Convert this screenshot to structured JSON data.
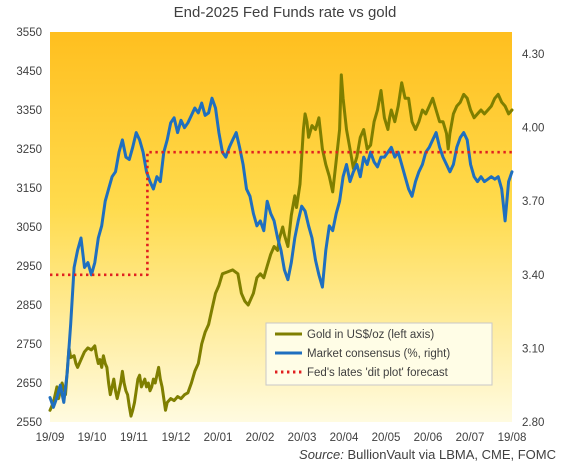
{
  "chart_data": {
    "type": "line",
    "title": "End-2025 Fed Funds rate vs gold",
    "xlabel": "",
    "ylabel": "",
    "x_ticks": [
      "19/09",
      "19/10",
      "19/11",
      "19/12",
      "20/01",
      "20/02",
      "20/03",
      "20/04",
      "20/05",
      "20/06",
      "20/07",
      "19/08"
    ],
    "y_left": {
      "ticks": [
        2550,
        2650,
        2750,
        2850,
        2950,
        3050,
        3150,
        3250,
        3350,
        3450,
        3550
      ],
      "lim": [
        2550,
        3550
      ]
    },
    "y_right": {
      "ticks": [
        "2.80",
        "3.10",
        "3.40",
        "3.70",
        "4.00",
        "4.30"
      ],
      "lim": [
        2.8,
        4.39
      ]
    },
    "grid": false,
    "legend_position": "bottom-right",
    "series": [
      {
        "name": "Gold in US$/oz (left axis)",
        "axis": "left",
        "color": "#7f7f00",
        "values": [
          [
            0,
            2580
          ],
          [
            0.2,
            2600
          ],
          [
            0.4,
            2640
          ],
          [
            0.5,
            2610
          ],
          [
            0.7,
            2650
          ],
          [
            0.9,
            2620
          ],
          [
            1.0,
            2680
          ],
          [
            1.1,
            2740
          ],
          [
            1.2,
            2715
          ],
          [
            1.4,
            2720
          ],
          [
            1.5,
            2700
          ],
          [
            1.6,
            2690
          ],
          [
            1.8,
            2710
          ],
          [
            2.0,
            2730
          ],
          [
            2.2,
            2740
          ],
          [
            2.4,
            2735
          ],
          [
            2.6,
            2745
          ],
          [
            2.7,
            2720
          ],
          [
            2.8,
            2700
          ],
          [
            2.9,
            2710
          ],
          [
            3.0,
            2690
          ],
          [
            3.1,
            2720
          ],
          [
            3.2,
            2700
          ],
          [
            3.3,
            2690
          ],
          [
            3.4,
            2650
          ],
          [
            3.5,
            2620
          ],
          [
            3.6,
            2640
          ],
          [
            3.7,
            2660
          ],
          [
            3.8,
            2630
          ],
          [
            3.9,
            2610
          ],
          [
            4.0,
            2630
          ],
          [
            4.1,
            2650
          ],
          [
            4.2,
            2680
          ],
          [
            4.3,
            2650
          ],
          [
            4.4,
            2630
          ],
          [
            4.5,
            2620
          ],
          [
            4.6,
            2590
          ],
          [
            4.7,
            2565
          ],
          [
            4.8,
            2580
          ],
          [
            4.9,
            2600
          ],
          [
            5.0,
            2630
          ],
          [
            5.1,
            2660
          ],
          [
            5.2,
            2670
          ],
          [
            5.3,
            2640
          ],
          [
            5.4,
            2650
          ],
          [
            5.5,
            2660
          ],
          [
            5.6,
            2640
          ],
          [
            5.7,
            2650
          ],
          [
            5.8,
            2630
          ],
          [
            5.9,
            2640
          ],
          [
            6.0,
            2660
          ],
          [
            6.1,
            2650
          ],
          [
            6.2,
            2670
          ],
          [
            6.3,
            2690
          ],
          [
            6.4,
            2660
          ],
          [
            6.5,
            2640
          ],
          [
            6.6,
            2610
          ],
          [
            6.7,
            2580
          ],
          [
            6.8,
            2600
          ],
          [
            7.0,
            2610
          ],
          [
            7.2,
            2605
          ],
          [
            7.4,
            2615
          ],
          [
            7.6,
            2610
          ],
          [
            7.8,
            2620
          ],
          [
            8.0,
            2625
          ],
          [
            8.2,
            2650
          ],
          [
            8.4,
            2680
          ],
          [
            8.6,
            2700
          ],
          [
            8.8,
            2750
          ],
          [
            9.0,
            2780
          ],
          [
            9.2,
            2800
          ],
          [
            9.4,
            2840
          ],
          [
            9.6,
            2880
          ],
          [
            9.8,
            2900
          ],
          [
            10.0,
            2930
          ],
          [
            10.3,
            2935
          ],
          [
            10.6,
            2940
          ],
          [
            10.9,
            2930
          ],
          [
            11.1,
            2880
          ],
          [
            11.3,
            2860
          ],
          [
            11.5,
            2850
          ],
          [
            11.8,
            2880
          ],
          [
            12.0,
            2920
          ],
          [
            12.2,
            2930
          ],
          [
            12.4,
            2920
          ],
          [
            12.6,
            2950
          ],
          [
            12.8,
            2980
          ],
          [
            13.0,
            3000
          ],
          [
            13.2,
            2990
          ],
          [
            13.3,
            3020
          ],
          [
            13.5,
            3050
          ],
          [
            13.6,
            3030
          ],
          [
            13.8,
            3000
          ],
          [
            14.0,
            3080
          ],
          [
            14.2,
            3130
          ],
          [
            14.3,
            3100
          ],
          [
            14.5,
            3160
          ],
          [
            14.6,
            3230
          ],
          [
            14.7,
            3300
          ],
          [
            14.8,
            3340
          ],
          [
            14.9,
            3320
          ],
          [
            15.0,
            3280
          ],
          [
            15.2,
            3310
          ],
          [
            15.4,
            3300
          ],
          [
            15.6,
            3330
          ],
          [
            15.8,
            3250
          ],
          [
            16.0,
            3210
          ],
          [
            16.2,
            3180
          ],
          [
            16.4,
            3140
          ],
          [
            16.6,
            3220
          ],
          [
            16.8,
            3300
          ],
          [
            16.9,
            3440
          ],
          [
            17.0,
            3380
          ],
          [
            17.2,
            3300
          ],
          [
            17.4,
            3250
          ],
          [
            17.6,
            3200
          ],
          [
            17.8,
            3230
          ],
          [
            18.0,
            3280
          ],
          [
            18.2,
            3300
          ],
          [
            18.4,
            3250
          ],
          [
            18.6,
            3260
          ],
          [
            18.8,
            3320
          ],
          [
            19.0,
            3350
          ],
          [
            19.2,
            3400
          ],
          [
            19.4,
            3330
          ],
          [
            19.6,
            3300
          ],
          [
            19.7,
            3330
          ],
          [
            19.8,
            3350
          ],
          [
            20.0,
            3320
          ],
          [
            20.2,
            3360
          ],
          [
            20.4,
            3420
          ],
          [
            20.6,
            3380
          ],
          [
            20.8,
            3380
          ],
          [
            21.0,
            3320
          ],
          [
            21.2,
            3300
          ],
          [
            21.4,
            3320
          ],
          [
            21.6,
            3350
          ],
          [
            21.8,
            3340
          ],
          [
            22.0,
            3360
          ],
          [
            22.2,
            3380
          ],
          [
            22.4,
            3350
          ],
          [
            22.6,
            3320
          ],
          [
            22.8,
            3320
          ],
          [
            23.0,
            3290
          ],
          [
            23.1,
            3250
          ],
          [
            23.2,
            3290
          ],
          [
            23.4,
            3340
          ],
          [
            23.6,
            3360
          ],
          [
            23.8,
            3370
          ],
          [
            24.0,
            3390
          ],
          [
            24.2,
            3380
          ],
          [
            24.4,
            3350
          ],
          [
            24.6,
            3330
          ],
          [
            24.8,
            3340
          ],
          [
            25.0,
            3350
          ],
          [
            25.2,
            3340
          ],
          [
            25.4,
            3350
          ],
          [
            25.6,
            3360
          ],
          [
            25.8,
            3380
          ],
          [
            26.0,
            3390
          ],
          [
            26.2,
            3370
          ],
          [
            26.4,
            3360
          ],
          [
            26.6,
            3340
          ],
          [
            26.8,
            3350
          ]
        ]
      },
      {
        "name": "Market consensus (%, right)",
        "axis": "right",
        "color": "#1f6fbf",
        "values": [
          [
            0,
            2.9
          ],
          [
            0.2,
            2.86
          ],
          [
            0.4,
            2.9
          ],
          [
            0.6,
            2.95
          ],
          [
            0.8,
            2.88
          ],
          [
            1.0,
            3.0
          ],
          [
            1.2,
            3.2
          ],
          [
            1.4,
            3.43
          ],
          [
            1.6,
            3.5
          ],
          [
            1.8,
            3.55
          ],
          [
            2.0,
            3.43
          ],
          [
            2.2,
            3.45
          ],
          [
            2.4,
            3.4
          ],
          [
            2.6,
            3.45
          ],
          [
            2.8,
            3.55
          ],
          [
            3.0,
            3.6
          ],
          [
            3.2,
            3.7
          ],
          [
            3.4,
            3.75
          ],
          [
            3.6,
            3.8
          ],
          [
            3.8,
            3.82
          ],
          [
            4.0,
            3.9
          ],
          [
            4.2,
            3.95
          ],
          [
            4.4,
            3.88
          ],
          [
            4.6,
            3.87
          ],
          [
            4.8,
            3.92
          ],
          [
            5.0,
            3.98
          ],
          [
            5.2,
            3.95
          ],
          [
            5.4,
            3.9
          ],
          [
            5.6,
            3.82
          ],
          [
            5.8,
            3.78
          ],
          [
            6.0,
            3.75
          ],
          [
            6.2,
            3.8
          ],
          [
            6.4,
            3.78
          ],
          [
            6.6,
            3.9
          ],
          [
            6.8,
            3.95
          ],
          [
            7.0,
            4.02
          ],
          [
            7.2,
            4.04
          ],
          [
            7.4,
            3.98
          ],
          [
            7.6,
            4.03
          ],
          [
            7.8,
            4.0
          ],
          [
            8.0,
            4.02
          ],
          [
            8.2,
            4.05
          ],
          [
            8.4,
            4.08
          ],
          [
            8.6,
            4.06
          ],
          [
            8.8,
            4.1
          ],
          [
            9.0,
            4.05
          ],
          [
            9.2,
            4.06
          ],
          [
            9.4,
            4.12
          ],
          [
            9.6,
            4.08
          ],
          [
            9.8,
            3.98
          ],
          [
            10.0,
            3.9
          ],
          [
            10.2,
            3.88
          ],
          [
            10.4,
            3.92
          ],
          [
            10.6,
            3.95
          ],
          [
            10.8,
            3.98
          ],
          [
            11.0,
            3.92
          ],
          [
            11.2,
            3.85
          ],
          [
            11.4,
            3.75
          ],
          [
            11.6,
            3.72
          ],
          [
            11.8,
            3.65
          ],
          [
            12.0,
            3.6
          ],
          [
            12.2,
            3.62
          ],
          [
            12.4,
            3.58
          ],
          [
            12.6,
            3.7
          ],
          [
            12.8,
            3.65
          ],
          [
            13.0,
            3.62
          ],
          [
            13.2,
            3.55
          ],
          [
            13.4,
            3.5
          ],
          [
            13.6,
            3.42
          ],
          [
            13.8,
            3.38
          ],
          [
            14.0,
            3.45
          ],
          [
            14.2,
            3.55
          ],
          [
            14.4,
            3.62
          ],
          [
            14.6,
            3.68
          ],
          [
            14.8,
            3.66
          ],
          [
            15.0,
            3.6
          ],
          [
            15.2,
            3.55
          ],
          [
            15.4,
            3.46
          ],
          [
            15.6,
            3.4
          ],
          [
            15.8,
            3.35
          ],
          [
            16.0,
            3.5
          ],
          [
            16.2,
            3.6
          ],
          [
            16.4,
            3.58
          ],
          [
            16.6,
            3.65
          ],
          [
            16.8,
            3.7
          ],
          [
            17.0,
            3.8
          ],
          [
            17.2,
            3.85
          ],
          [
            17.4,
            3.78
          ],
          [
            17.6,
            3.82
          ],
          [
            17.8,
            3.85
          ],
          [
            18.0,
            3.8
          ],
          [
            18.2,
            3.88
          ],
          [
            18.4,
            3.85
          ],
          [
            18.6,
            3.9
          ],
          [
            18.8,
            3.86
          ],
          [
            19.0,
            3.84
          ],
          [
            19.2,
            3.88
          ],
          [
            19.4,
            3.88
          ],
          [
            19.6,
            3.9
          ],
          [
            19.8,
            3.92
          ],
          [
            20.0,
            3.88
          ],
          [
            20.2,
            3.9
          ],
          [
            20.4,
            3.85
          ],
          [
            20.6,
            3.8
          ],
          [
            20.8,
            3.75
          ],
          [
            21.0,
            3.72
          ],
          [
            21.2,
            3.78
          ],
          [
            21.4,
            3.82
          ],
          [
            21.6,
            3.85
          ],
          [
            21.8,
            3.9
          ],
          [
            22.0,
            3.92
          ],
          [
            22.2,
            3.95
          ],
          [
            22.4,
            3.98
          ],
          [
            22.6,
            3.92
          ],
          [
            22.8,
            3.88
          ],
          [
            23.0,
            3.85
          ],
          [
            23.2,
            3.82
          ],
          [
            23.4,
            3.85
          ],
          [
            23.6,
            3.92
          ],
          [
            23.8,
            3.96
          ],
          [
            24.0,
            3.98
          ],
          [
            24.2,
            3.95
          ],
          [
            24.4,
            3.85
          ],
          [
            24.6,
            3.8
          ],
          [
            24.8,
            3.78
          ],
          [
            25.0,
            3.8
          ],
          [
            25.2,
            3.78
          ],
          [
            25.4,
            3.79
          ],
          [
            25.6,
            3.8
          ],
          [
            25.8,
            3.79
          ],
          [
            26.0,
            3.8
          ],
          [
            26.2,
            3.75
          ],
          [
            26.4,
            3.62
          ],
          [
            26.6,
            3.78
          ],
          [
            26.8,
            3.82
          ]
        ]
      },
      {
        "name": "Fed's lates 'dit plot' forecast",
        "axis": "right",
        "color": "#e02020",
        "dashed": true,
        "values": [
          [
            0,
            3.4
          ],
          [
            5.65,
            3.4
          ],
          [
            5.65,
            3.9
          ],
          [
            26.8,
            3.9
          ]
        ]
      }
    ]
  },
  "source": {
    "key": "Source:",
    "text": " BullionVault via LBMA, CME, FOMC"
  }
}
